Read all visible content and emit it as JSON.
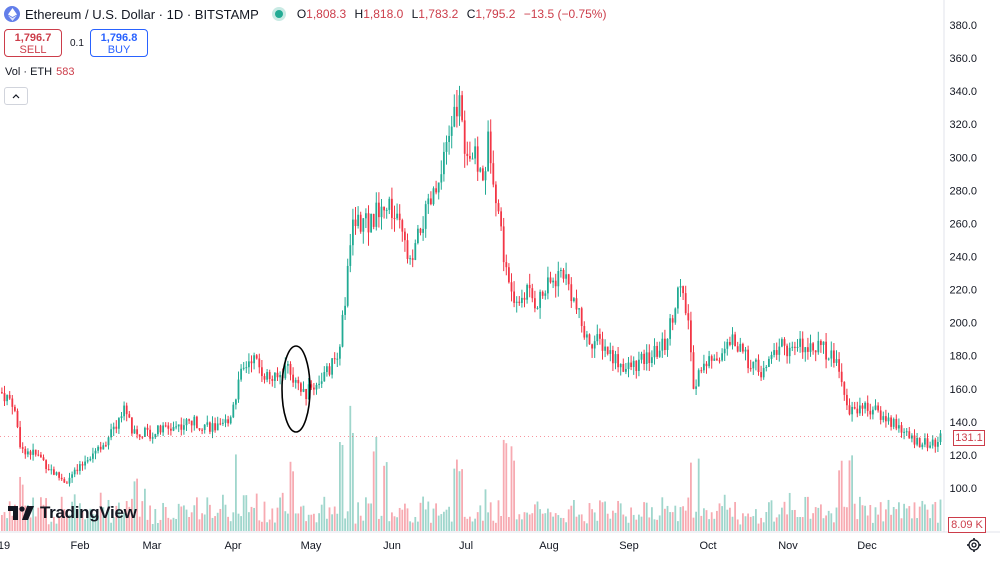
{
  "header": {
    "title": "Ethereum / U.S. Dollar · 1D · BITSTAMP",
    "open_label": "O",
    "open": "1,808.3",
    "high_label": "H",
    "high": "1,818.0",
    "low_label": "L",
    "low": "1,783.2",
    "close_label": "C",
    "close": "1,795.2",
    "change": "−13.5 (−0.75%)"
  },
  "trade": {
    "sell_price": "1,796.7",
    "sell_label": "SELL",
    "spread": "0.1",
    "buy_price": "1,796.8",
    "buy_label": "BUY"
  },
  "volume_legend": {
    "label": "Vol · ETH",
    "value": "583"
  },
  "collapse_icon": "chevron-up-icon",
  "logo": {
    "text": "TradingView"
  },
  "last_price_tag": "131.1",
  "last_volume_tag": "8.09 K",
  "colors": {
    "up": "#22ab94",
    "down": "#f23645",
    "vol_up": "#9fd6cc",
    "vol_down": "#f7aab1",
    "accent": "#2962ff"
  },
  "chart_data": {
    "type": "candlestick",
    "x_axis_labels": [
      "19",
      "Feb",
      "Mar",
      "Apr",
      "May",
      "Jun",
      "Jul",
      "Aug",
      "Sep",
      "Oct",
      "Nov",
      "Dec"
    ],
    "y_ticks": [
      "380.0",
      "360.0",
      "340.0",
      "320.0",
      "300.0",
      "280.0",
      "260.0",
      "240.0",
      "220.0",
      "200.0",
      "180.0",
      "160.0",
      "140.0",
      "120.0",
      "100.0"
    ],
    "ylim": [
      100,
      380
    ],
    "anchors": [
      [
        0,
        158
      ],
      [
        12,
        152
      ],
      [
        20,
        125
      ],
      [
        40,
        118
      ],
      [
        55,
        108
      ],
      [
        65,
        104
      ],
      [
        80,
        112
      ],
      [
        88,
        120
      ],
      [
        110,
        132
      ],
      [
        125,
        150
      ],
      [
        130,
        135
      ],
      [
        150,
        133
      ],
      [
        165,
        136
      ],
      [
        190,
        140
      ],
      [
        208,
        138
      ],
      [
        220,
        135
      ],
      [
        230,
        145
      ],
      [
        240,
        168
      ],
      [
        250,
        180
      ],
      [
        265,
        168
      ],
      [
        275,
        165
      ],
      [
        288,
        175
      ],
      [
        296,
        160
      ],
      [
        305,
        157
      ],
      [
        318,
        165
      ],
      [
        330,
        172
      ],
      [
        338,
        185
      ],
      [
        345,
        215
      ],
      [
        350,
        255
      ],
      [
        358,
        262
      ],
      [
        368,
        258
      ],
      [
        378,
        270
      ],
      [
        390,
        268
      ],
      [
        400,
        255
      ],
      [
        410,
        232
      ],
      [
        420,
        258
      ],
      [
        430,
        272
      ],
      [
        440,
        285
      ],
      [
        450,
        320
      ],
      [
        458,
        332
      ],
      [
        465,
        305
      ],
      [
        475,
        298
      ],
      [
        482,
        285
      ],
      [
        488,
        312
      ],
      [
        496,
        275
      ],
      [
        505,
        232
      ],
      [
        515,
        210
      ],
      [
        525,
        220
      ],
      [
        535,
        212
      ],
      [
        548,
        222
      ],
      [
        562,
        232
      ],
      [
        572,
        215
      ],
      [
        585,
        190
      ],
      [
        600,
        188
      ],
      [
        612,
        180
      ],
      [
        625,
        172
      ],
      [
        640,
        176
      ],
      [
        655,
        182
      ],
      [
        665,
        188
      ],
      [
        678,
        222
      ],
      [
        688,
        200
      ],
      [
        692,
        162
      ],
      [
        700,
        172
      ],
      [
        712,
        178
      ],
      [
        722,
        182
      ],
      [
        732,
        190
      ],
      [
        742,
        180
      ],
      [
        752,
        175
      ],
      [
        762,
        168
      ],
      [
        770,
        178
      ],
      [
        780,
        188
      ],
      [
        790,
        182
      ],
      [
        800,
        186
      ],
      [
        812,
        188
      ],
      [
        822,
        184
      ],
      [
        835,
        178
      ],
      [
        842,
        160
      ],
      [
        848,
        145
      ],
      [
        858,
        150
      ],
      [
        870,
        148
      ],
      [
        885,
        142
      ],
      [
        898,
        138
      ],
      [
        908,
        130
      ],
      [
        920,
        128
      ],
      [
        932,
        126
      ],
      [
        942,
        131
      ]
    ],
    "volume_spikes": [
      [
        20,
        60
      ],
      [
        100,
        45
      ],
      [
        135,
        60
      ],
      [
        235,
        85
      ],
      [
        290,
        75
      ],
      [
        340,
        90
      ],
      [
        350,
        130
      ],
      [
        375,
        95
      ],
      [
        385,
        85
      ],
      [
        455,
        80
      ],
      [
        460,
        75
      ],
      [
        505,
        95
      ],
      [
        512,
        85
      ],
      [
        690,
        90
      ],
      [
        698,
        80
      ],
      [
        840,
        75
      ],
      [
        850,
        80
      ],
      [
        940,
        40
      ]
    ],
    "annotation": {
      "shape": "ellipse",
      "around": "late-April dip"
    }
  }
}
